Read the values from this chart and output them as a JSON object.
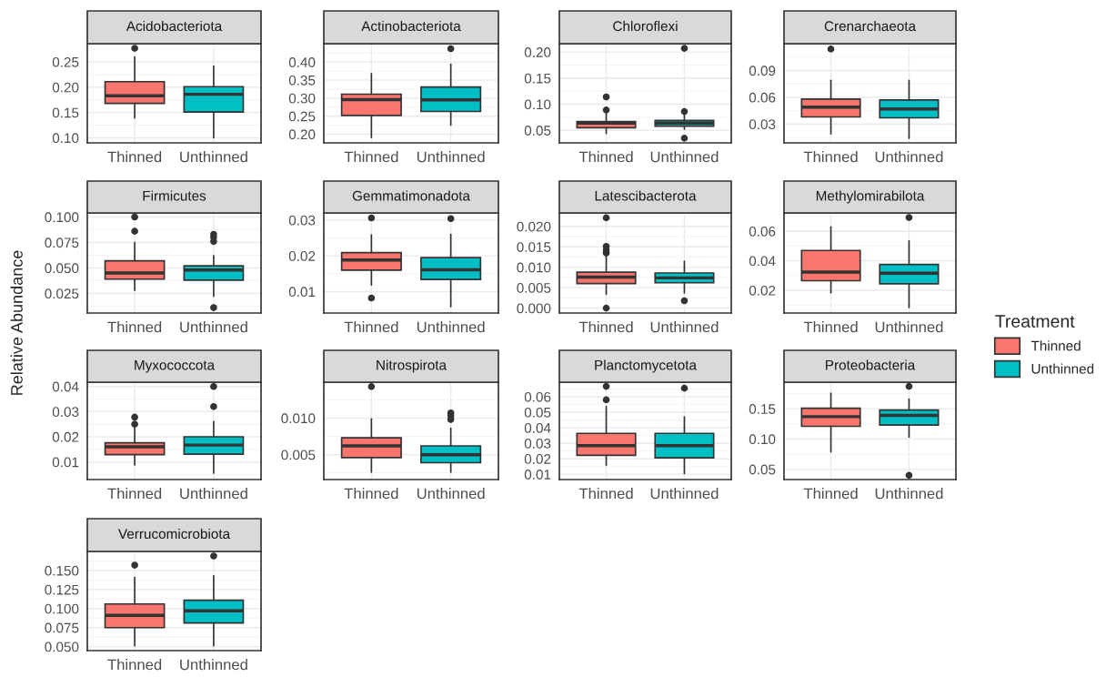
{
  "chart_data": [
    {
      "type": "box",
      "title": "Acidobacteriota",
      "categories": [
        "Thinned",
        "Unthinned"
      ],
      "ylim": [
        0.09,
        0.286
      ],
      "yticks": [
        {
          "value": 0.1,
          "label": "0.10"
        },
        {
          "value": 0.15,
          "label": "0.15"
        },
        {
          "value": 0.2,
          "label": "0.20"
        },
        {
          "value": 0.25,
          "label": "0.25"
        }
      ],
      "grid": true,
      "series": [
        {
          "color": "#f8766d",
          "boxes": [
            {
              "low": 0.139,
              "q1": 0.168,
              "median": 0.183,
              "q3": 0.211,
              "high": 0.26,
              "outliers": [
                0.277
              ]
            },
            null
          ]
        },
        {
          "color": "#00bfc4",
          "boxes": [
            null,
            {
              "low": 0.1,
              "q1": 0.151,
              "median": 0.186,
              "q3": 0.201,
              "high": 0.242
            }
          ]
        }
      ]
    },
    {
      "type": "box",
      "title": "Actinobacteriota",
      "categories": [
        "Thinned",
        "Unthinned"
      ],
      "ylim": [
        0.176,
        0.451
      ],
      "yticks": [
        {
          "value": 0.2,
          "label": "0.20"
        },
        {
          "value": 0.25,
          "label": "0.25"
        },
        {
          "value": 0.3,
          "label": "0.30"
        },
        {
          "value": 0.35,
          "label": "0.35"
        },
        {
          "value": 0.4,
          "label": "0.40"
        }
      ],
      "grid": true,
      "series": [
        {
          "color": "#f8766d",
          "boxes": [
            {
              "low": 0.191,
              "q1": 0.252,
              "median": 0.296,
              "q3": 0.311,
              "high": 0.368
            },
            null
          ]
        },
        {
          "color": "#00bfc4",
          "boxes": [
            null,
            {
              "low": 0.225,
              "q1": 0.263,
              "median": 0.295,
              "q3": 0.331,
              "high": 0.394,
              "outliers": [
                0.437
              ]
            }
          ]
        }
      ]
    },
    {
      "type": "box",
      "title": "Chloroflexi",
      "categories": [
        "Thinned",
        "Unthinned"
      ],
      "ylim": [
        0.026,
        0.216
      ],
      "yticks": [
        {
          "value": 0.05,
          "label": "0.05"
        },
        {
          "value": 0.1,
          "label": "0.10"
        },
        {
          "value": 0.15,
          "label": "0.15"
        },
        {
          "value": 0.2,
          "label": "0.20"
        }
      ],
      "grid": true,
      "series": [
        {
          "color": "#f8766d",
          "boxes": [
            {
              "low": 0.044,
              "q1": 0.055,
              "median": 0.064,
              "q3": 0.067,
              "high": 0.083,
              "outliers": [
                0.114,
                0.089
              ]
            },
            null
          ]
        },
        {
          "color": "#00bfc4",
          "boxes": [
            null,
            {
              "low": 0.052,
              "q1": 0.058,
              "median": 0.064,
              "q3": 0.069,
              "high": 0.08,
              "outliers": [
                0.207,
                0.086,
                0.035
              ]
            }
          ]
        }
      ]
    },
    {
      "type": "box",
      "title": "Crenarchaeota",
      "categories": [
        "Thinned",
        "Unthinned"
      ],
      "ylim": [
        0.009,
        0.12
      ],
      "yticks": [
        {
          "value": 0.03,
          "label": "0.03"
        },
        {
          "value": 0.06,
          "label": "0.06"
        },
        {
          "value": 0.09,
          "label": "0.09"
        }
      ],
      "grid": true,
      "series": [
        {
          "color": "#f8766d",
          "boxes": [
            {
              "low": 0.019,
              "q1": 0.038,
              "median": 0.049,
              "q3": 0.058,
              "high": 0.079,
              "outliers": [
                0.114
              ]
            },
            null
          ]
        },
        {
          "color": "#00bfc4",
          "boxes": [
            null,
            {
              "low": 0.014,
              "q1": 0.037,
              "median": 0.047,
              "q3": 0.057,
              "high": 0.079
            }
          ]
        }
      ]
    },
    {
      "type": "box",
      "title": "Firmicutes",
      "ylabel": "Relative Abundance",
      "categories": [
        "Thinned",
        "Unthinned"
      ],
      "ylim": [
        0.0057,
        0.104
      ],
      "yticks": [
        {
          "value": 0.025,
          "label": "0.025"
        },
        {
          "value": 0.05,
          "label": "0.050"
        },
        {
          "value": 0.075,
          "label": "0.075"
        },
        {
          "value": 0.1,
          "label": "0.100"
        }
      ],
      "grid": true,
      "series": [
        {
          "color": "#f8766d",
          "boxes": [
            {
              "low": 0.028,
              "q1": 0.039,
              "median": 0.045,
              "q3": 0.057,
              "high": 0.075,
              "outliers": [
                0.1,
                0.086
              ]
            },
            null
          ]
        },
        {
          "color": "#00bfc4",
          "boxes": [
            null,
            {
              "low": 0.022,
              "q1": 0.038,
              "median": 0.048,
              "q3": 0.052,
              "high": 0.062,
              "outliers": [
                0.083,
                0.08,
                0.076,
                0.011
              ]
            }
          ]
        }
      ]
    },
    {
      "type": "box",
      "title": "Gemmatimonadota",
      "categories": [
        "Thinned",
        "Unthinned"
      ],
      "ylim": [
        0.004,
        0.032
      ],
      "yticks": [
        {
          "value": 0.01,
          "label": "0.01"
        },
        {
          "value": 0.02,
          "label": "0.02"
        },
        {
          "value": 0.03,
          "label": "0.03"
        }
      ],
      "grid": true,
      "series": [
        {
          "color": "#f8766d",
          "boxes": [
            {
              "low": 0.0118,
              "q1": 0.016,
              "median": 0.0188,
              "q3": 0.0209,
              "high": 0.0259,
              "outliers": [
                0.0306,
                0.0082
              ]
            },
            null
          ]
        },
        {
          "color": "#00bfc4",
          "boxes": [
            null,
            {
              "low": 0.0058,
              "q1": 0.0134,
              "median": 0.0161,
              "q3": 0.0195,
              "high": 0.026,
              "outliers": [
                0.0304
              ]
            }
          ]
        }
      ]
    },
    {
      "type": "box",
      "title": "Latescibacterota",
      "categories": [
        "Thinned",
        "Unthinned"
      ],
      "ylim": [
        -0.0012,
        0.0233
      ],
      "yticks": [
        {
          "value": 0.0,
          "label": "0.000"
        },
        {
          "value": 0.005,
          "label": "0.005"
        },
        {
          "value": 0.01,
          "label": "0.010"
        },
        {
          "value": 0.015,
          "label": "0.015"
        },
        {
          "value": 0.02,
          "label": "0.020"
        }
      ],
      "grid": true,
      "series": [
        {
          "color": "#f8766d",
          "boxes": [
            {
              "low": 0.0034,
              "q1": 0.006,
              "median": 0.0076,
              "q3": 0.0088,
              "high": 0.0128,
              "outliers": [
                0.0221,
                0.0151,
                0.0142,
                0.0135,
                0.0
              ]
            },
            null
          ]
        },
        {
          "color": "#00bfc4",
          "boxes": [
            null,
            {
              "low": 0.0037,
              "q1": 0.0062,
              "median": 0.0074,
              "q3": 0.0086,
              "high": 0.0115,
              "outliers": [
                0.0018
              ]
            }
          ]
        }
      ]
    },
    {
      "type": "box",
      "title": "Methylomirabilota",
      "categories": [
        "Thinned",
        "Unthinned"
      ],
      "ylim": [
        0.0046,
        0.0724
      ],
      "yticks": [
        {
          "value": 0.02,
          "label": "0.02"
        },
        {
          "value": 0.04,
          "label": "0.04"
        },
        {
          "value": 0.06,
          "label": "0.06"
        }
      ],
      "grid": true,
      "legend": "right",
      "legend_title": "Treatment",
      "series": [
        {
          "name": "Thinned",
          "color": "#f8766d",
          "boxes": [
            {
              "low": 0.0183,
              "q1": 0.0265,
              "median": 0.0324,
              "q3": 0.047,
              "high": 0.063
            },
            null
          ]
        },
        {
          "name": "Unthinned",
          "color": "#00bfc4",
          "boxes": [
            null,
            {
              "low": 0.0084,
              "q1": 0.0244,
              "median": 0.0316,
              "q3": 0.0375,
              "high": 0.0535,
              "outliers": [
                0.0693
              ]
            }
          ]
        }
      ]
    },
    {
      "type": "box",
      "title": "Myxococcota",
      "categories": [
        "Thinned",
        "Unthinned"
      ],
      "ylim": [
        0.003,
        0.0417
      ],
      "yticks": [
        {
          "value": 0.01,
          "label": "0.01"
        },
        {
          "value": 0.02,
          "label": "0.02"
        },
        {
          "value": 0.03,
          "label": "0.03"
        },
        {
          "value": 0.04,
          "label": "0.04"
        }
      ],
      "grid": true,
      "series": [
        {
          "color": "#f8766d",
          "boxes": [
            {
              "low": 0.0088,
              "q1": 0.0129,
              "median": 0.016,
              "q3": 0.0176,
              "high": 0.024,
              "outliers": [
                0.0278,
                0.025
              ]
            },
            null
          ]
        },
        {
          "color": "#00bfc4",
          "boxes": [
            null,
            {
              "low": 0.0055,
              "q1": 0.0131,
              "median": 0.0167,
              "q3": 0.02,
              "high": 0.026,
              "outliers": [
                0.04,
                0.032
              ]
            }
          ]
        }
      ]
    },
    {
      "type": "box",
      "title": "Nitrospirota",
      "categories": [
        "Thinned",
        "Unthinned"
      ],
      "ylim": [
        0.0016,
        0.0149
      ],
      "yticks": [
        {
          "value": 0.005,
          "label": "0.005"
        },
        {
          "value": 0.01,
          "label": "0.010"
        }
      ],
      "grid": true,
      "series": [
        {
          "color": "#f8766d",
          "boxes": [
            {
              "low": 0.0026,
              "q1": 0.0046,
              "median": 0.0062,
              "q3": 0.0073,
              "high": 0.0099,
              "outliers": [
                0.0143
              ]
            },
            null
          ]
        },
        {
          "color": "#00bfc4",
          "boxes": [
            null,
            {
              "low": 0.0026,
              "q1": 0.0039,
              "median": 0.005,
              "q3": 0.0062,
              "high": 0.0086,
              "outliers": [
                0.0107,
                0.0103,
                0.0098
              ]
            }
          ]
        }
      ]
    },
    {
      "type": "box",
      "title": "Planctomycetota",
      "categories": [
        "Thinned",
        "Unthinned"
      ],
      "ylim": [
        0.0066,
        0.0694
      ],
      "yticks": [
        {
          "value": 0.01,
          "label": "0.01"
        },
        {
          "value": 0.02,
          "label": "0.02"
        },
        {
          "value": 0.03,
          "label": "0.03"
        },
        {
          "value": 0.04,
          "label": "0.04"
        },
        {
          "value": 0.05,
          "label": "0.05"
        },
        {
          "value": 0.06,
          "label": "0.06"
        }
      ],
      "grid": true,
      "series": [
        {
          "color": "#f8766d",
          "boxes": [
            {
              "low": 0.0159,
              "q1": 0.0222,
              "median": 0.0285,
              "q3": 0.0364,
              "high": 0.0537,
              "outliers": [
                0.0667,
                0.058
              ]
            },
            null
          ]
        },
        {
          "color": "#00bfc4",
          "boxes": [
            null,
            {
              "low": 0.0104,
              "q1": 0.0206,
              "median": 0.0285,
              "q3": 0.0364,
              "high": 0.047,
              "outliers": [
                0.0655
              ]
            }
          ]
        }
      ]
    },
    {
      "type": "box",
      "title": "Proteobacteria",
      "categories": [
        "Thinned",
        "Unthinned"
      ],
      "ylim": [
        0.033,
        0.194
      ],
      "yticks": [
        {
          "value": 0.05,
          "label": "0.05"
        },
        {
          "value": 0.1,
          "label": "0.10"
        },
        {
          "value": 0.15,
          "label": "0.15"
        }
      ],
      "grid": true,
      "series": [
        {
          "color": "#f8766d",
          "boxes": [
            {
              "low": 0.079,
              "q1": 0.121,
              "median": 0.137,
              "q3": 0.151,
              "high": 0.176
            },
            null
          ]
        },
        {
          "color": "#00bfc4",
          "boxes": [
            null,
            {
              "low": 0.103,
              "q1": 0.123,
              "median": 0.139,
              "q3": 0.148,
              "high": 0.166,
              "outliers": [
                0.187,
                0.04
              ]
            }
          ]
        }
      ]
    },
    {
      "type": "box",
      "title": "Verrucomicrobiota",
      "categories": [
        "Thinned",
        "Unthinned"
      ],
      "ylim": [
        0.0448,
        0.175
      ],
      "yticks": [
        {
          "value": 0.05,
          "label": "0.050"
        },
        {
          "value": 0.075,
          "label": "0.075"
        },
        {
          "value": 0.1,
          "label": "0.100"
        },
        {
          "value": 0.125,
          "label": "0.125"
        },
        {
          "value": 0.15,
          "label": "0.150"
        }
      ],
      "grid": true,
      "series": [
        {
          "color": "#f8766d",
          "boxes": [
            {
              "low": 0.051,
              "q1": 0.075,
              "median": 0.091,
              "q3": 0.106,
              "high": 0.141,
              "outliers": [
                0.157
              ]
            },
            null
          ]
        },
        {
          "color": "#00bfc4",
          "boxes": [
            null,
            {
              "low": 0.051,
              "q1": 0.081,
              "median": 0.097,
              "q3": 0.111,
              "high": 0.143,
              "outliers": [
                0.169
              ]
            }
          ]
        }
      ]
    }
  ]
}
